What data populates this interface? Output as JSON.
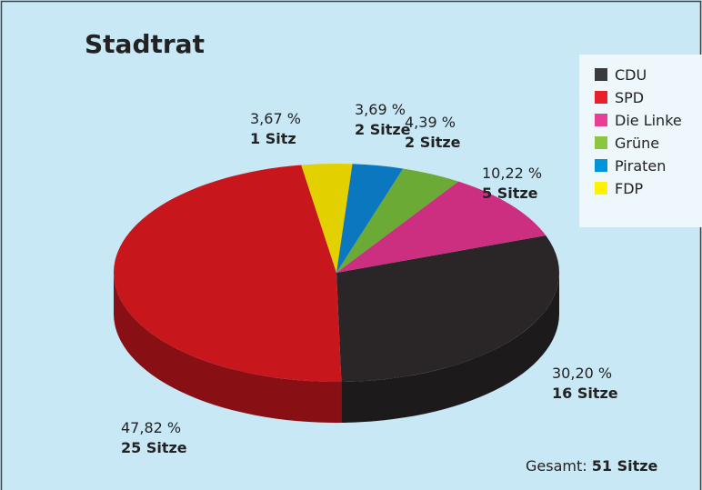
{
  "chart_data": {
    "type": "pie",
    "title": "Stadtrat",
    "categories": [
      "CDU",
      "SPD",
      "Die Linke",
      "Grüne",
      "Piraten",
      "FDP"
    ],
    "values": [
      30.2,
      47.82,
      10.22,
      4.39,
      3.69,
      3.67
    ],
    "value_labels": [
      "30,20 %",
      "47,82 %",
      "10,22 %",
      "4,39 %",
      "3,69 %",
      "3,67 %"
    ],
    "seat_labels": [
      "16 Sitze",
      "25 Sitze",
      "5 Sitze",
      "2 Sitze",
      "2 Sitze",
      "1 Sitz"
    ],
    "colors": [
      "#2a2627",
      "#c8161d",
      "#cc2f7f",
      "#6aaa35",
      "#0b77bf",
      "#e3d000"
    ],
    "legend_colors": [
      "#3a3a3a",
      "#e8202a",
      "#e73f96",
      "#8cc63f",
      "#0095da",
      "#fff200"
    ],
    "legend": "top-right",
    "total_label": "Gesamt:",
    "total_value": "51 Sitze"
  }
}
